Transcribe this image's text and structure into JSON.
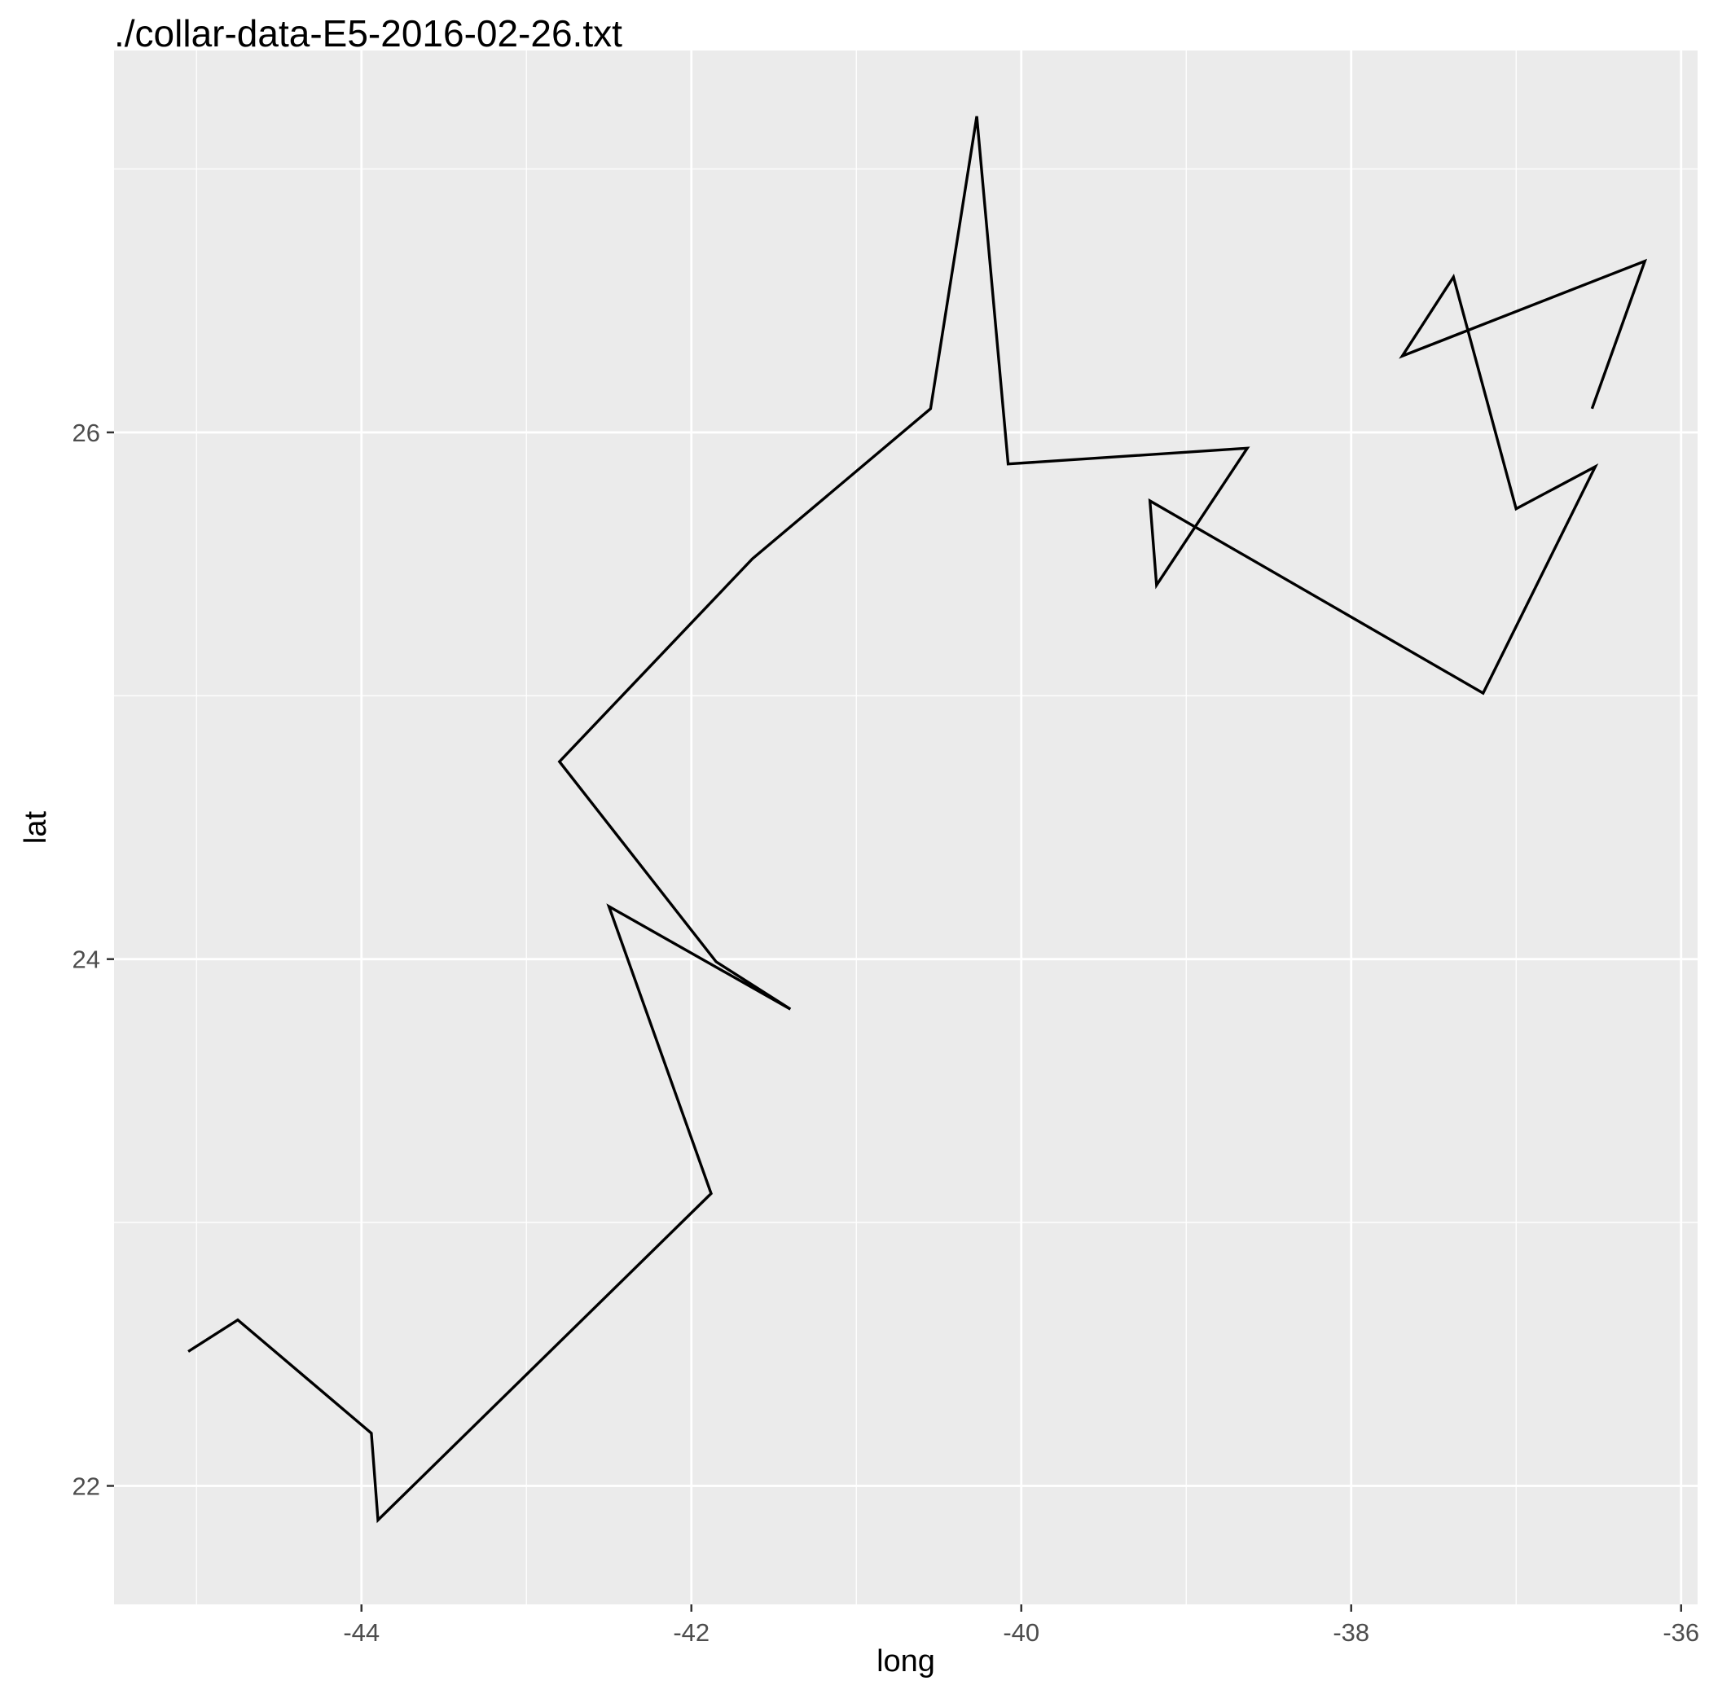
{
  "chart_data": {
    "type": "line",
    "title": "./collar-data-E5-2016-02-26.txt",
    "xlabel": "long",
    "ylabel": "lat",
    "xlim": [
      -45.5,
      -35.9
    ],
    "ylim": [
      21.55,
      27.45
    ],
    "x_ticks": [
      -44,
      -42,
      -40,
      -38,
      -36
    ],
    "y_ticks": [
      22,
      24,
      26
    ],
    "grid": true,
    "background": "#EBEBEB",
    "grid_color": "#FFFFFF",
    "line_color": "#000000",
    "series": [
      {
        "x": [
          -45.05,
          -44.75,
          -43.94,
          -43.9,
          -41.88,
          -42.5,
          -41.4,
          -41.85,
          -42.8,
          -41.63,
          -40.55,
          -40.27,
          -40.08,
          -38.63,
          -39.18,
          -39.22,
          -37.2,
          -36.52,
          -37.0,
          -37.38,
          -37.69,
          -36.22,
          -36.54
        ],
        "y": [
          22.51,
          22.63,
          22.2,
          21.87,
          23.11,
          24.2,
          23.81,
          23.99,
          24.75,
          25.52,
          26.09,
          27.2,
          25.88,
          25.94,
          25.42,
          25.74,
          25.01,
          25.87,
          25.71,
          26.59,
          26.29,
          26.65,
          26.09
        ]
      }
    ]
  }
}
